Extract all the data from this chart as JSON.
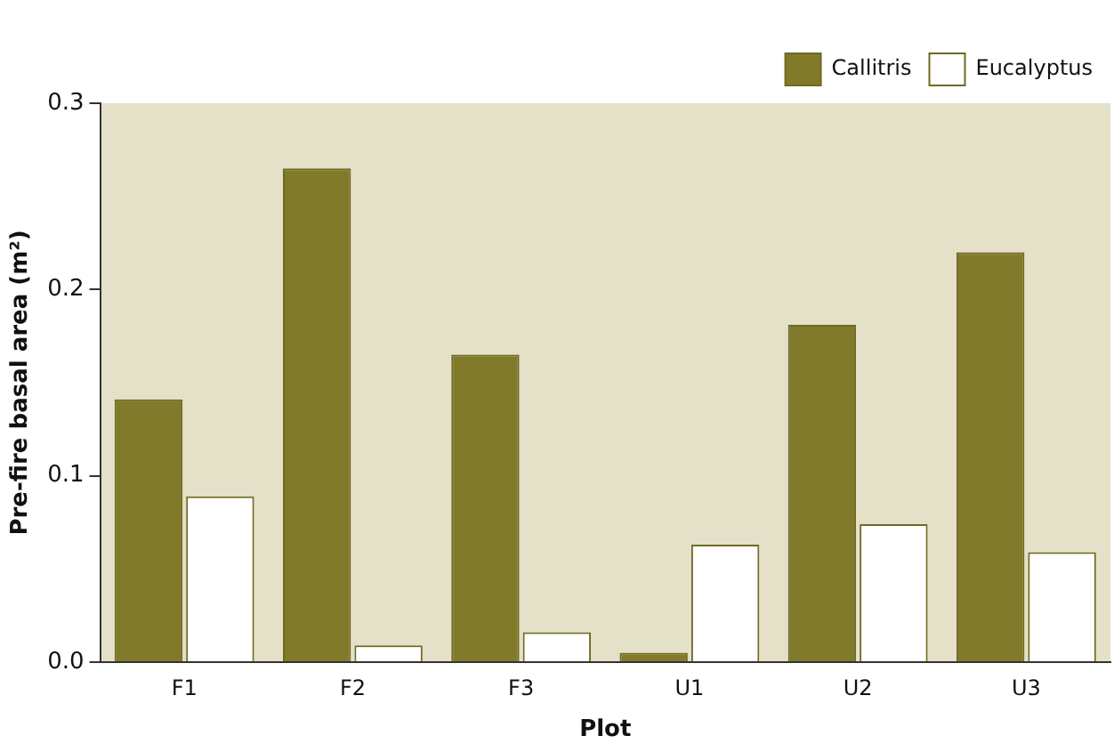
{
  "chart_data": {
    "type": "bar",
    "xlabel": "Plot",
    "ylabel": "Pre-fire basal area (m²)",
    "categories": [
      "F1",
      "F2",
      "F3",
      "U1",
      "U2",
      "U3"
    ],
    "series": [
      {
        "name": "Callitris",
        "color": "#817a2a",
        "values": [
          0.141,
          0.265,
          0.165,
          0.005,
          0.181,
          0.22
        ]
      },
      {
        "name": "Eucalyptus",
        "color": "#ffffff",
        "values": [
          0.089,
          0.009,
          0.016,
          0.063,
          0.074,
          0.059
        ]
      }
    ],
    "ylim": [
      0,
      0.3
    ],
    "yticks": [
      {
        "value": 0,
        "label": "0.0"
      },
      0.1,
      0.2,
      0.3
    ],
    "grid": false,
    "legend": "top right"
  }
}
